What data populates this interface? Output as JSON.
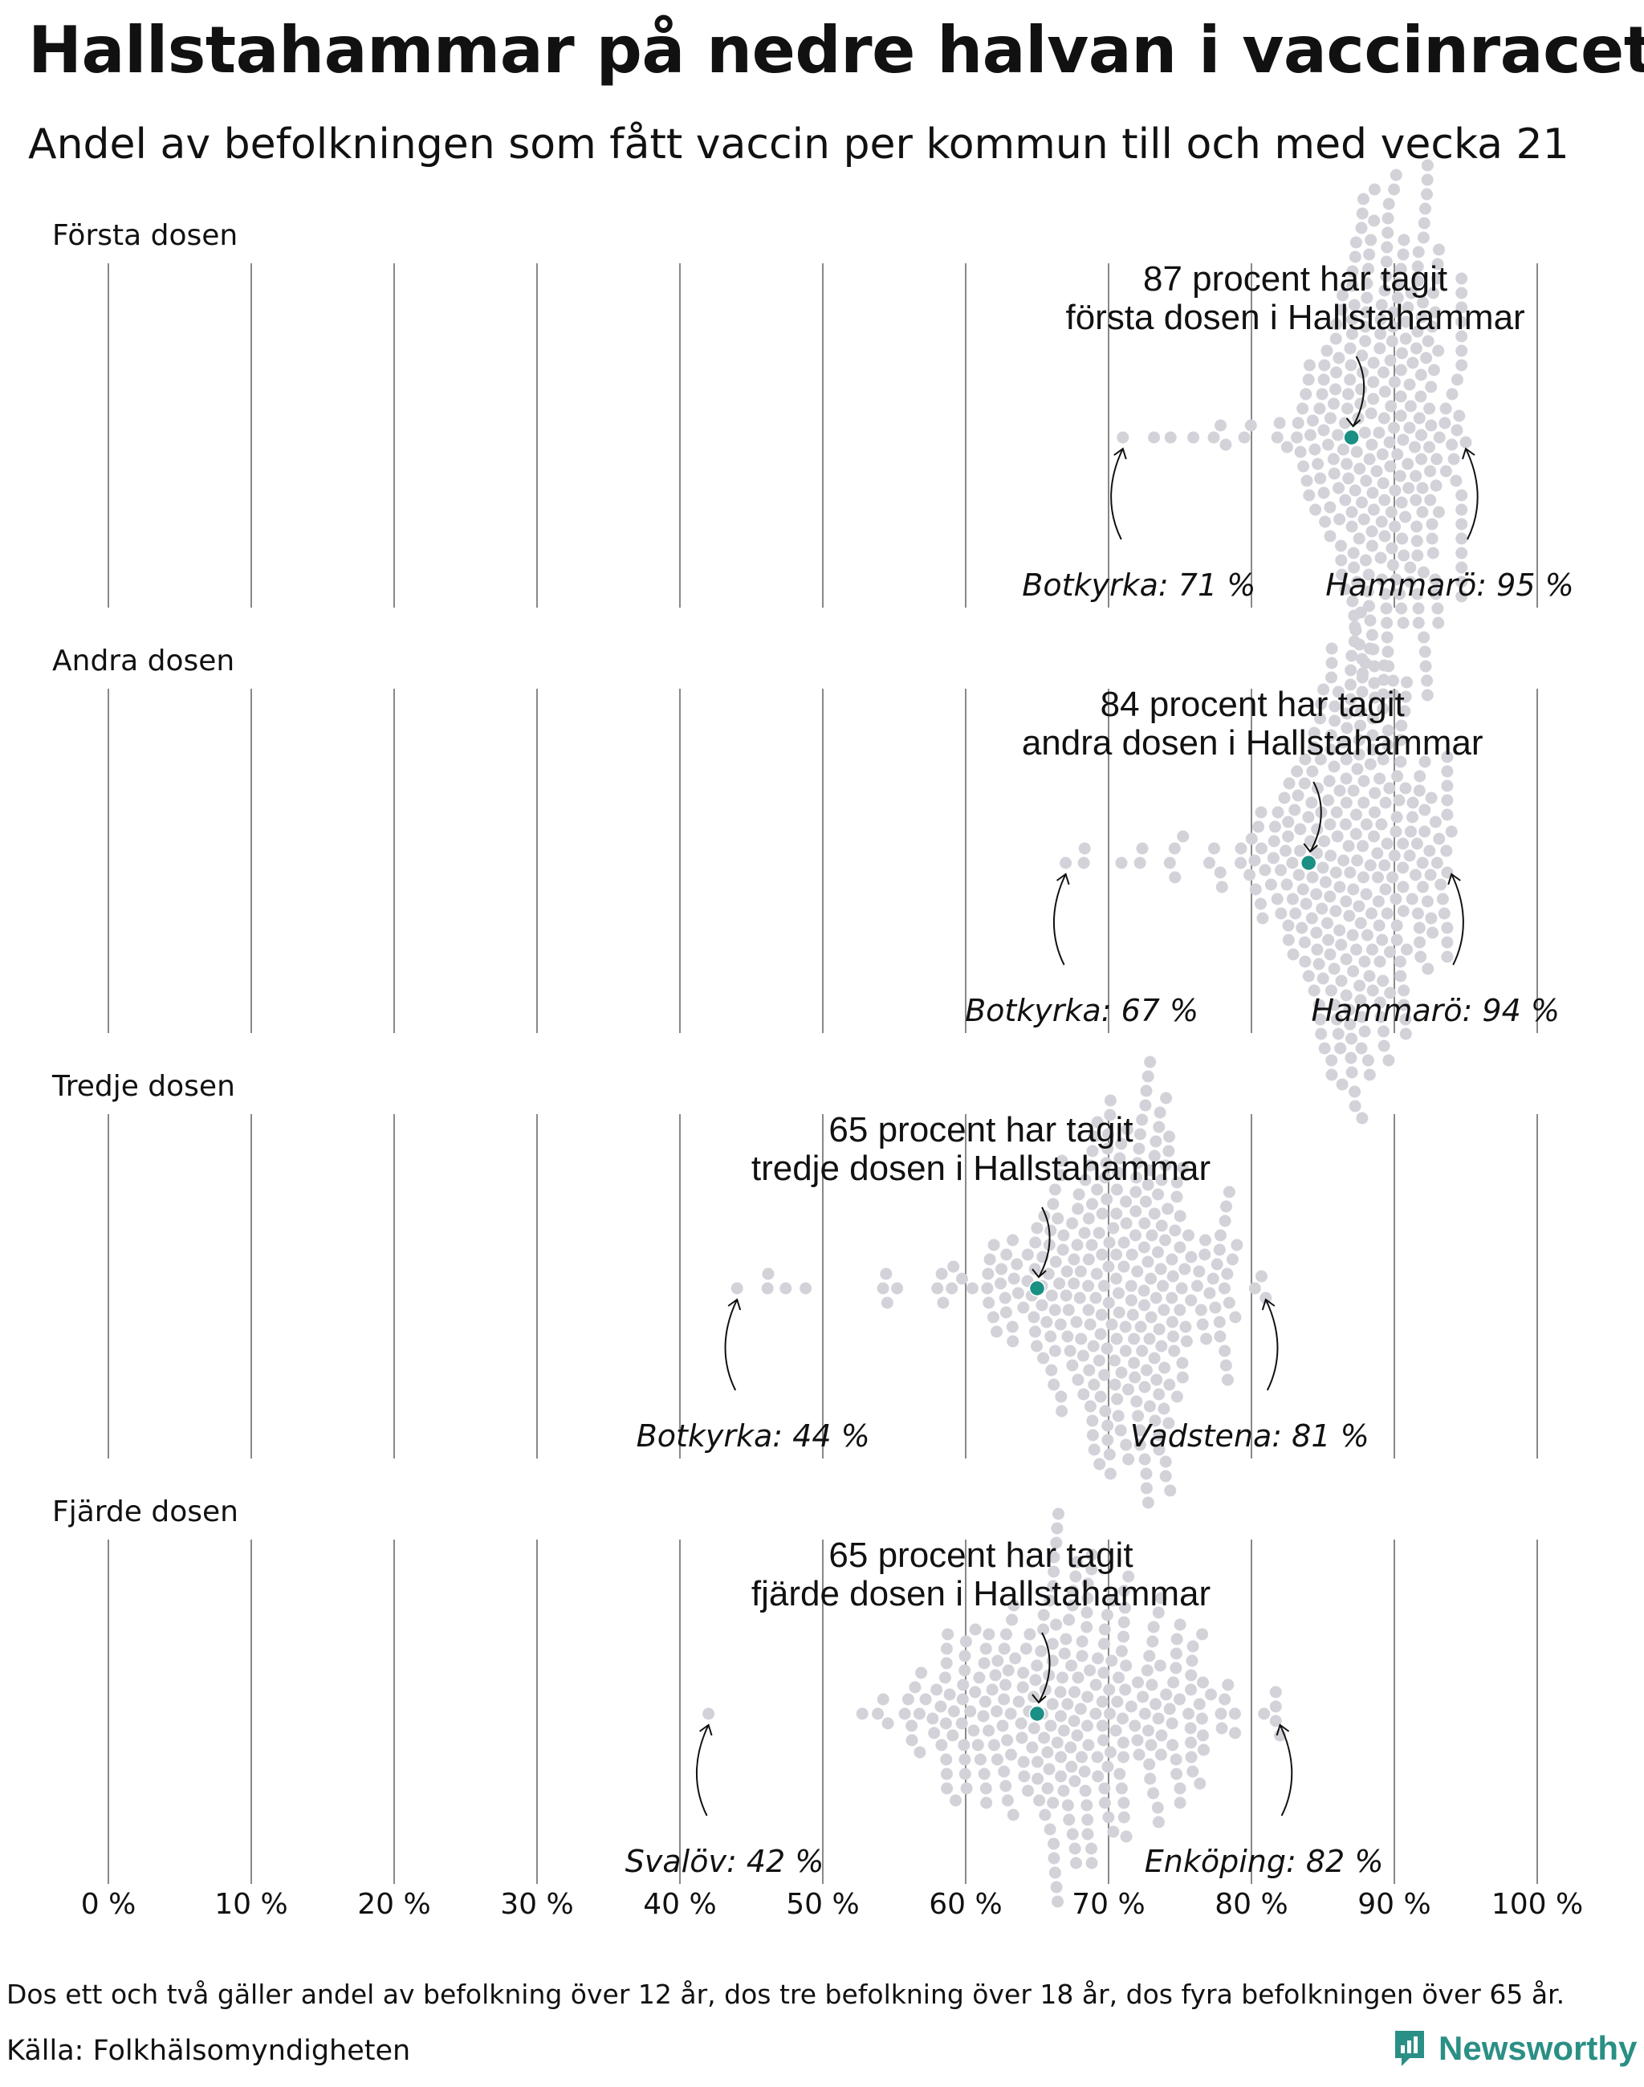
{
  "title": "Hallstahammar på nedre halvan i vaccinracet",
  "subtitle": "Andel av befolkningen som fått vaccin per kommun till och med vecka 21",
  "note": "Dos ett och två gäller andel av befolkning över 12 år, dos tre befolkning över 18 år, dos fyra befolkningen över 65 år.",
  "source": "Källa: Folkhälsomyndigheten",
  "brand": "Newsworthy",
  "colors": {
    "highlight": "#1a8f83",
    "dots": "#d3d2d9",
    "grid": "#888888",
    "brand": "#2a8f85"
  },
  "chart_data": {
    "type": "scatter",
    "subtype": "beeswarm",
    "x_ticks": [
      0,
      10,
      20,
      30,
      40,
      50,
      60,
      70,
      80,
      90,
      100
    ],
    "x_tick_labels": [
      "0 %",
      "10 %",
      "20 %",
      "30 %",
      "40 %",
      "50 %",
      "60 %",
      "70 %",
      "80 %",
      "90 %",
      "100 %"
    ],
    "xlim": [
      0,
      100
    ],
    "grid": true,
    "panels": [
      {
        "label": "Första dosen",
        "highlight": {
          "name": "Hallstahammar",
          "value": 87,
          "line1": "87 procent har tagit",
          "line2": "första dosen i Hallstahammar"
        },
        "min": {
          "name": "Botkyrka",
          "value": 71,
          "label": "Botkyrka: 71 %"
        },
        "max": {
          "name": "Hammarö",
          "value": 95,
          "label": "Hammarö: 95 %"
        },
        "mean": 89.3,
        "sd": 3.0
      },
      {
        "label": "Andra dosen",
        "highlight": {
          "name": "Hallstahammar",
          "value": 84,
          "line1": "84 procent har tagit",
          "line2": "andra dosen i Hallstahammar"
        },
        "min": {
          "name": "Botkyrka",
          "value": 67,
          "label": "Botkyrka: 67 %"
        },
        "max": {
          "name": "Hammarö",
          "value": 94,
          "label": "Hammarö: 94 %"
        },
        "mean": 87.5,
        "sd": 3.5
      },
      {
        "label": "Tredje dosen",
        "highlight": {
          "name": "Hallstahammar",
          "value": 65,
          "line1": "65 procent har tagit",
          "line2": "tredje dosen i Hallstahammar"
        },
        "min": {
          "name": "Botkyrka",
          "value": 44,
          "label": "Botkyrka: 44 %"
        },
        "max": {
          "name": "Vadstena",
          "value": 81,
          "label": "Vadstena: 81 %"
        },
        "mean": 70.5,
        "sd": 4.2
      },
      {
        "label": "Fjärde dosen",
        "highlight": {
          "name": "Hallstahammar",
          "value": 65,
          "line1": "65 procent har tagit",
          "line2": "fjärde dosen i Hallstahammar"
        },
        "min": {
          "name": "Svalöv",
          "value": 42,
          "label": "Svalöv: 42 %"
        },
        "max": {
          "name": "Enköping",
          "value": 82,
          "label": "Enköping: 82 %"
        },
        "mean": 68.0,
        "sd": 6.5
      }
    ]
  }
}
